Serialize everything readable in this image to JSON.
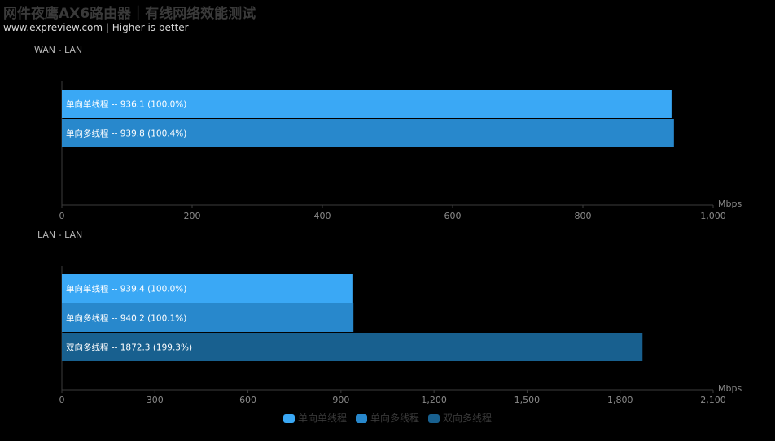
{
  "title": "网件夜鹰AX6路由器｜有线网络效能测试",
  "subtitle": "www.expreview.com | Higher is better",
  "colors": {
    "background": "#000000",
    "series_single_one_way": "#3aa8f5",
    "series_multi_one_way": "#2888cc",
    "series_multi_two_way": "#18608f"
  },
  "legend": [
    "单向单线程",
    "单向多线程",
    "双向多线程"
  ],
  "chart_data": [
    {
      "type": "bar",
      "orientation": "horizontal",
      "title": "WAN - LAN",
      "unit": "Mbps",
      "xlim": [
        0,
        1000
      ],
      "ticks": [
        "0",
        "200",
        "400",
        "600",
        "800",
        "1,000"
      ],
      "grid": false,
      "legend_position": "bottom",
      "bars": [
        {
          "category": "单向单线程",
          "value": 936.1,
          "percent": "100.0%",
          "label": "单向单线程  --  936.1 (100.0%)"
        },
        {
          "category": "单向多线程",
          "value": 939.8,
          "percent": "100.4%",
          "label": "单向多线程  --  939.8 (100.4%)"
        }
      ]
    },
    {
      "type": "bar",
      "orientation": "horizontal",
      "title": "LAN - LAN",
      "unit": "Mbps",
      "xlim": [
        0,
        2100
      ],
      "ticks": [
        "0",
        "300",
        "600",
        "900",
        "1,200",
        "1,500",
        "1,800",
        "2,100"
      ],
      "grid": false,
      "legend_position": "bottom",
      "bars": [
        {
          "category": "单向单线程",
          "value": 939.4,
          "percent": "100.0%",
          "label": "单向单线程  --  939.4 (100.0%)"
        },
        {
          "category": "单向多线程",
          "value": 940.2,
          "percent": "100.1%",
          "label": "单向多线程  --  940.2 (100.1%)"
        },
        {
          "category": "双向多线程",
          "value": 1872.3,
          "percent": "199.3%",
          "label": "双向多线程  --  1872.3 (199.3%)"
        }
      ]
    }
  ]
}
